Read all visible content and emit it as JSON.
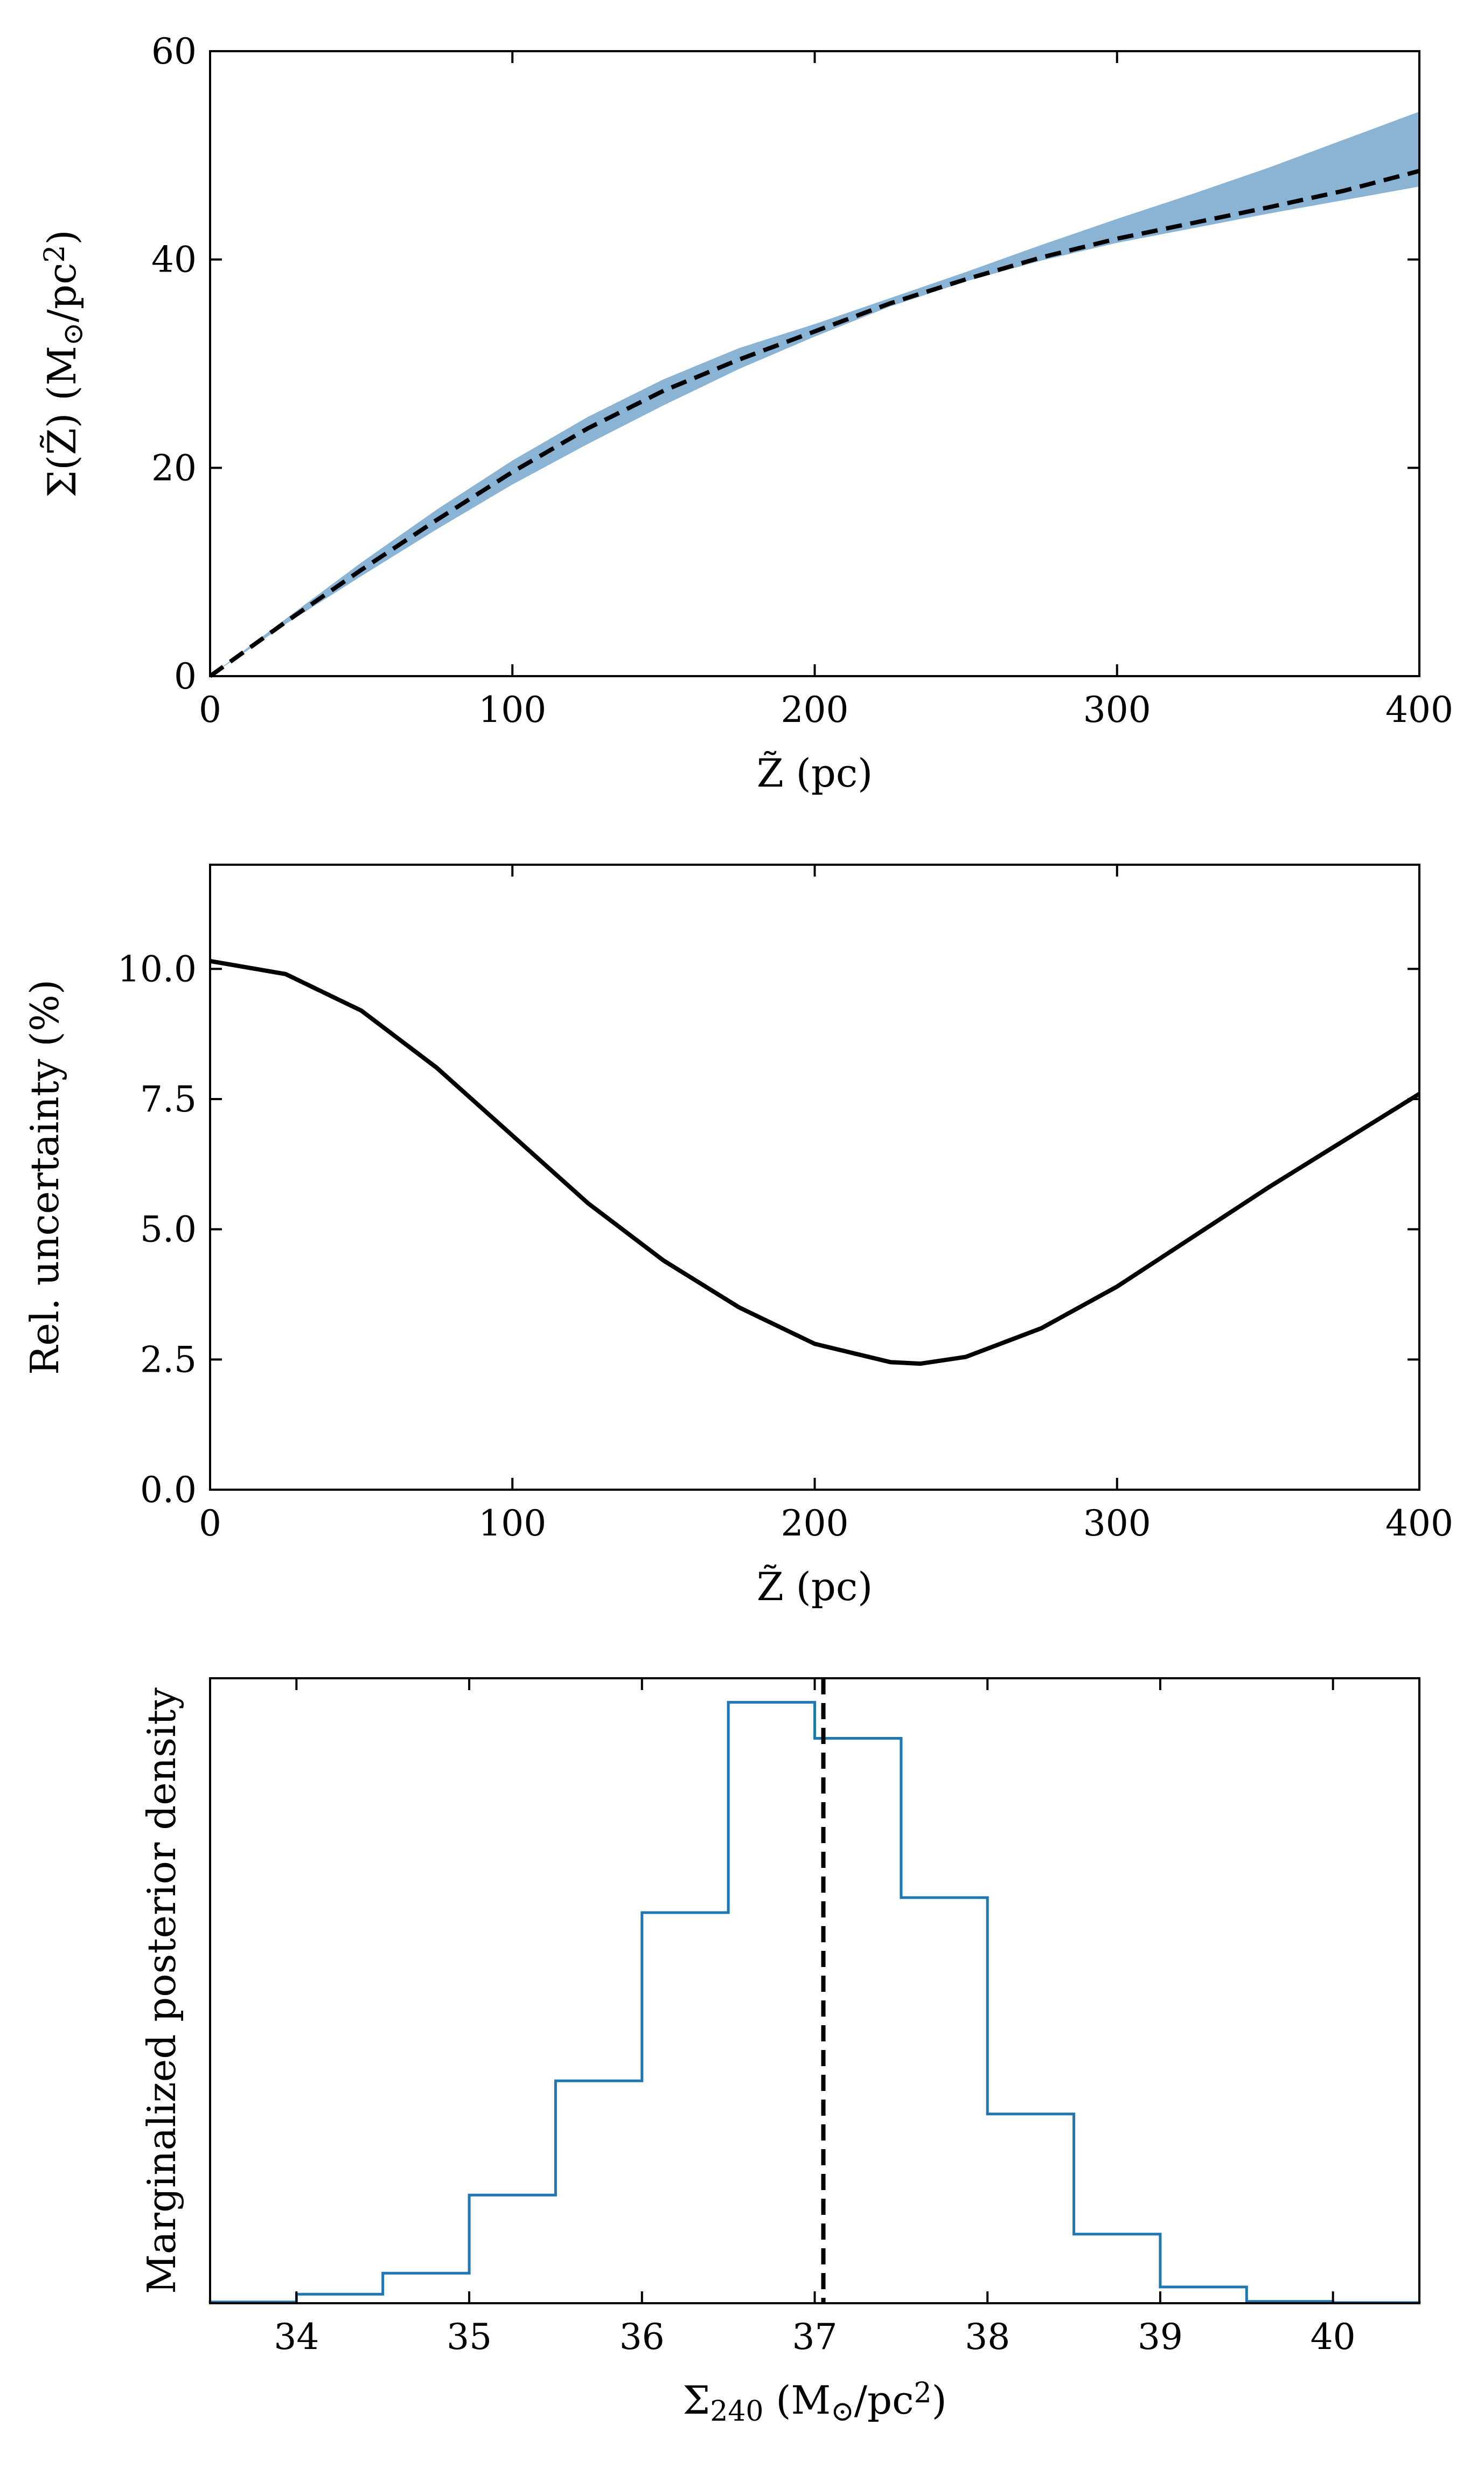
{
  "chart_data": [
    {
      "id": "panel-top",
      "type": "line",
      "title": "",
      "xlabel": "Z̃ (pc)",
      "ylabel_parts": {
        "base": "Σ(Z̃) (M",
        "sub": "⊙",
        "mid": "/pc",
        "sup": "2",
        "end": ")"
      },
      "xlim": [
        0,
        400
      ],
      "ylim": [
        0,
        60
      ],
      "xticks": [
        0,
        100,
        200,
        300,
        400
      ],
      "xtick_labels": [
        "0",
        "100",
        "200",
        "300",
        "400"
      ],
      "yticks": [
        0,
        20,
        40,
        60
      ],
      "ytick_labels": [
        "0",
        "20",
        "40",
        "60"
      ],
      "grid": false,
      "band_color": "#8ab4d6",
      "line_color": "#000000",
      "x": [
        0,
        25,
        50,
        75,
        100,
        125,
        150,
        175,
        200,
        225,
        250,
        275,
        300,
        325,
        350,
        375,
        400
      ],
      "median": [
        0,
        5.2,
        10.2,
        15.0,
        19.6,
        23.8,
        27.4,
        30.4,
        33.1,
        35.8,
        38.1,
        40.2,
        42.0,
        43.5,
        45.0,
        46.6,
        48.5
      ],
      "band_low": [
        0,
        5.0,
        9.6,
        14.1,
        18.4,
        22.3,
        26.0,
        29.5,
        32.6,
        35.5,
        37.9,
        39.9,
        41.6,
        43.0,
        44.4,
        45.7,
        47.0
      ],
      "band_high": [
        0,
        5.5,
        10.9,
        16.0,
        20.7,
        24.9,
        28.5,
        31.5,
        33.8,
        36.3,
        38.8,
        41.4,
        43.9,
        46.3,
        48.8,
        51.5,
        54.2
      ]
    },
    {
      "id": "panel-middle",
      "type": "line",
      "title": "",
      "xlabel": "Z̃ (pc)",
      "ylabel": "Rel. uncertainty (%)",
      "xlim": [
        0,
        400
      ],
      "ylim": [
        0,
        12
      ],
      "xticks": [
        0,
        100,
        200,
        300,
        400
      ],
      "xtick_labels": [
        "0",
        "100",
        "200",
        "300",
        "400"
      ],
      "yticks": [
        0,
        2.5,
        5,
        7.5,
        10
      ],
      "ytick_labels": [
        "0.0",
        "2.5",
        "5.0",
        "7.5",
        "10.0"
      ],
      "grid": false,
      "line_color": "#000000",
      "x": [
        0,
        25,
        50,
        75,
        100,
        125,
        150,
        175,
        200,
        225,
        235,
        250,
        275,
        300,
        325,
        350,
        375,
        400
      ],
      "values": [
        10.15,
        9.9,
        9.2,
        8.1,
        6.8,
        5.5,
        4.4,
        3.5,
        2.8,
        2.45,
        2.42,
        2.55,
        3.1,
        3.9,
        4.85,
        5.8,
        6.7,
        7.6
      ]
    },
    {
      "id": "panel-bottom",
      "type": "bar",
      "style": "step-histogram",
      "title": "",
      "xlabel_parts": {
        "base": "Σ",
        "sub": "240",
        "mid": " (M",
        "sub2": "⊙",
        "mid2": "/pc",
        "sup": "2",
        "end": ")"
      },
      "ylabel": "Marginalized posterior density",
      "xlim": [
        33.5,
        40.5
      ],
      "ylim": [
        0,
        1.04
      ],
      "xticks": [
        34,
        35,
        36,
        37,
        38,
        39,
        40
      ],
      "xtick_labels": [
        "34",
        "35",
        "36",
        "37",
        "38",
        "39",
        "40"
      ],
      "grid": false,
      "step_color": "#1f77b4",
      "bin_edges": [
        33.5,
        34.0,
        34.5,
        35.0,
        35.5,
        36.0,
        36.5,
        37.0,
        37.5,
        38.0,
        38.5,
        39.0,
        39.5,
        40.0,
        40.5
      ],
      "values": [
        0.002,
        0.015,
        0.05,
        0.18,
        0.37,
        0.65,
        1.0,
        0.94,
        0.675,
        0.315,
        0.115,
        0.027,
        0.003,
        0.001
      ],
      "marker_line": {
        "x": 37.05,
        "style": "dashed",
        "color": "#000000"
      }
    }
  ]
}
